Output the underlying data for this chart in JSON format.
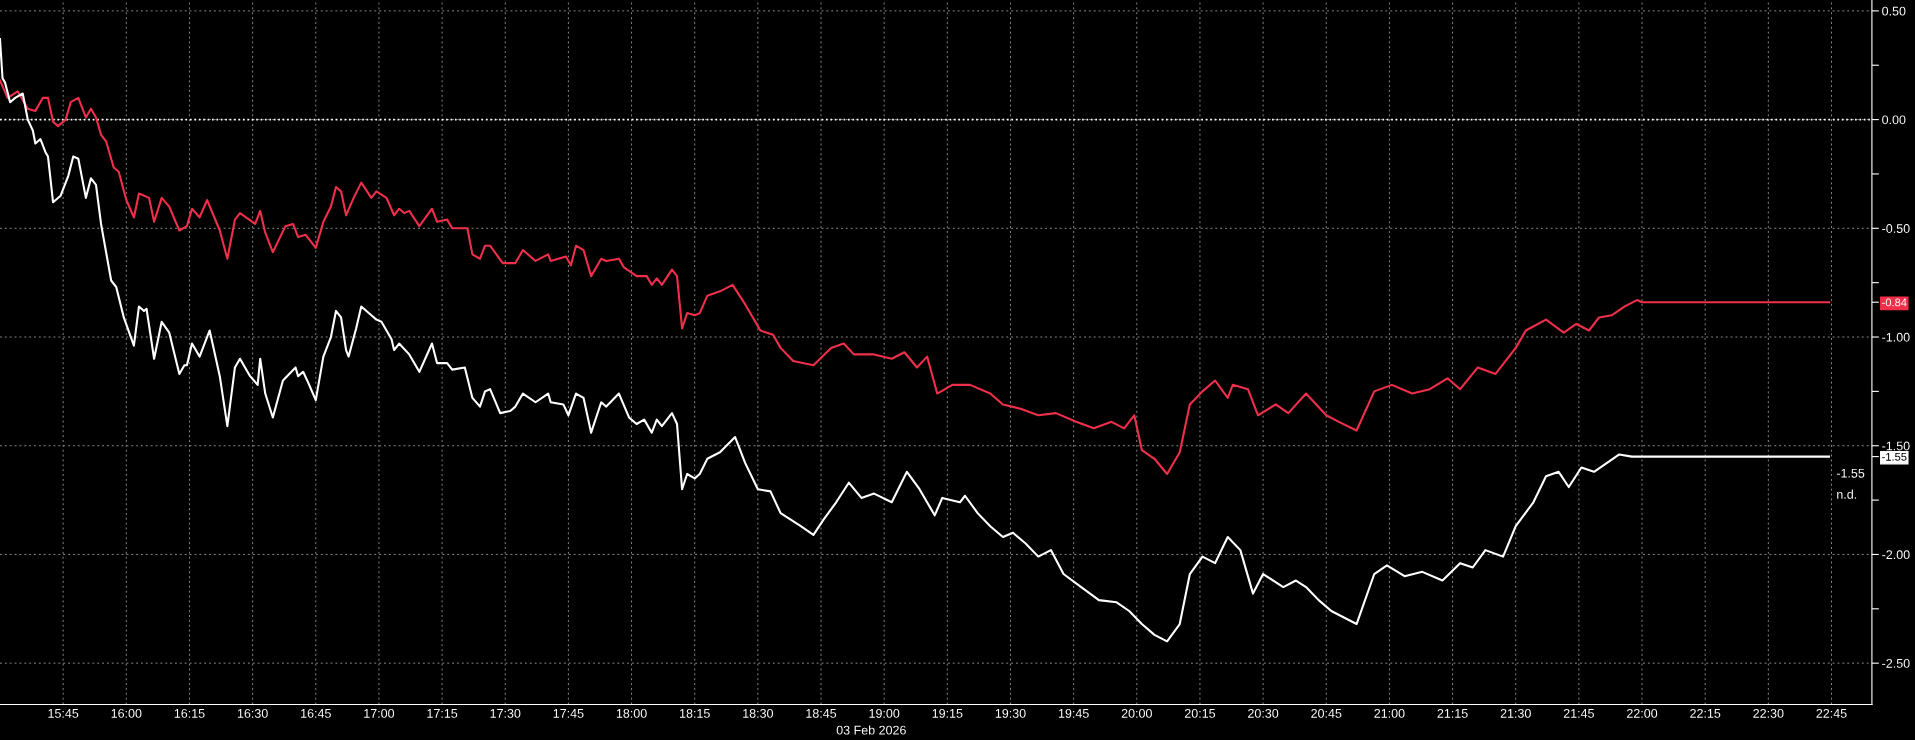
{
  "chart_data": {
    "type": "line",
    "series": [
      {
        "color": "#f0304a",
        "x": [
          15.5,
          15.53,
          15.57,
          15.61,
          15.64,
          15.67,
          15.69,
          15.71,
          15.73,
          15.76,
          15.78,
          15.81,
          15.84,
          15.86,
          15.88,
          15.9,
          15.92,
          15.95,
          15.97,
          16.0,
          16.03,
          16.05,
          16.09,
          16.11,
          16.14,
          16.17,
          16.21,
          16.24,
          16.26,
          16.29,
          16.32,
          16.37,
          16.4,
          16.43,
          16.45,
          16.51,
          16.53,
          16.55,
          16.58,
          16.63,
          16.66,
          16.68,
          16.71,
          16.75,
          16.78,
          16.81,
          16.83,
          16.85,
          16.87,
          16.9,
          16.93,
          16.97,
          16.99,
          17.03,
          17.06,
          17.08,
          17.1,
          17.12,
          17.16,
          17.21,
          17.23,
          17.27,
          17.29,
          17.35,
          17.37,
          17.4,
          17.42,
          17.44,
          17.49,
          17.54,
          17.57,
          17.62,
          17.67,
          17.68,
          17.74,
          17.76,
          17.78,
          17.81,
          17.84,
          17.88,
          17.9,
          17.95,
          17.97,
          18.02,
          18.06,
          18.08,
          18.1,
          18.12,
          18.16,
          18.18,
          18.2,
          18.22,
          18.25,
          18.27,
          18.3,
          18.35,
          18.4,
          18.45,
          18.51,
          18.56,
          18.59,
          18.64,
          18.72,
          18.79,
          18.84,
          18.88,
          18.96,
          19.03,
          19.08,
          19.13,
          19.17,
          19.21,
          19.27,
          19.34,
          19.42,
          19.47,
          19.54,
          19.61,
          19.68,
          19.76,
          19.83,
          19.9,
          19.95,
          19.99,
          20.02,
          20.07,
          20.12,
          20.17,
          20.21,
          20.26,
          20.31,
          20.36,
          20.38,
          20.44,
          20.48,
          20.55,
          20.6,
          20.67,
          20.75,
          20.8,
          20.87,
          20.94,
          21.01,
          21.09,
          21.16,
          21.23,
          21.28,
          21.35,
          21.42,
          21.5,
          21.54,
          21.62,
          21.69,
          21.74,
          21.79,
          21.83,
          21.88,
          21.93,
          21.98,
          22.0,
          22.74
        ],
        "values": [
          0.18,
          0.1,
          0.13,
          0.05,
          0.04,
          0.1,
          0.1,
          -0.01,
          -0.03,
          0.0,
          0.08,
          0.1,
          0.01,
          0.05,
          0.01,
          -0.07,
          -0.1,
          -0.22,
          -0.24,
          -0.37,
          -0.45,
          -0.34,
          -0.36,
          -0.47,
          -0.36,
          -0.4,
          -0.51,
          -0.49,
          -0.41,
          -0.45,
          -0.37,
          -0.51,
          -0.64,
          -0.46,
          -0.43,
          -0.48,
          -0.42,
          -0.52,
          -0.61,
          -0.49,
          -0.48,
          -0.54,
          -0.53,
          -0.59,
          -0.47,
          -0.4,
          -0.31,
          -0.33,
          -0.44,
          -0.36,
          -0.29,
          -0.36,
          -0.33,
          -0.36,
          -0.44,
          -0.41,
          -0.43,
          -0.42,
          -0.49,
          -0.41,
          -0.47,
          -0.46,
          -0.5,
          -0.5,
          -0.62,
          -0.64,
          -0.58,
          -0.58,
          -0.66,
          -0.66,
          -0.6,
          -0.65,
          -0.62,
          -0.65,
          -0.63,
          -0.67,
          -0.58,
          -0.6,
          -0.72,
          -0.64,
          -0.65,
          -0.64,
          -0.68,
          -0.72,
          -0.72,
          -0.76,
          -0.73,
          -0.76,
          -0.69,
          -0.72,
          -0.96,
          -0.89,
          -0.9,
          -0.89,
          -0.81,
          -0.79,
          -0.76,
          -0.85,
          -0.97,
          -0.99,
          -1.05,
          -1.11,
          -1.13,
          -1.05,
          -1.03,
          -1.08,
          -1.08,
          -1.1,
          -1.07,
          -1.14,
          -1.09,
          -1.26,
          -1.22,
          -1.22,
          -1.26,
          -1.31,
          -1.33,
          -1.36,
          -1.35,
          -1.39,
          -1.42,
          -1.39,
          -1.42,
          -1.36,
          -1.52,
          -1.56,
          -1.63,
          -1.53,
          -1.31,
          -1.25,
          -1.2,
          -1.28,
          -1.22,
          -1.24,
          -1.36,
          -1.31,
          -1.35,
          -1.26,
          -1.36,
          -1.39,
          -1.43,
          -1.25,
          -1.22,
          -1.26,
          -1.24,
          -1.19,
          -1.24,
          -1.14,
          -1.17,
          -1.05,
          -0.97,
          -0.92,
          -0.98,
          -0.94,
          -0.97,
          -0.91,
          -0.9,
          -0.86,
          -0.83,
          -0.84,
          -0.84
        ]
      },
      {
        "color": "#ffffff",
        "x": [
          15.5,
          15.51,
          15.52,
          15.54,
          15.56,
          15.59,
          15.61,
          15.63,
          15.64,
          15.66,
          15.68,
          15.69,
          15.71,
          15.74,
          15.77,
          15.79,
          15.81,
          15.84,
          15.86,
          15.88,
          15.9,
          15.94,
          15.96,
          15.99,
          16.03,
          16.05,
          16.07,
          16.08,
          16.11,
          16.14,
          16.17,
          16.21,
          16.23,
          16.24,
          16.26,
          16.29,
          16.33,
          16.37,
          16.4,
          16.43,
          16.45,
          16.49,
          16.52,
          16.53,
          16.55,
          16.58,
          16.62,
          16.67,
          16.68,
          16.7,
          16.72,
          16.75,
          16.78,
          16.81,
          16.83,
          16.85,
          16.87,
          16.88,
          16.91,
          16.93,
          16.97,
          16.99,
          17.01,
          17.05,
          17.06,
          17.08,
          17.12,
          17.16,
          17.21,
          17.23,
          17.27,
          17.29,
          17.34,
          17.37,
          17.4,
          17.42,
          17.44,
          17.48,
          17.52,
          17.54,
          17.57,
          17.62,
          17.67,
          17.68,
          17.73,
          17.75,
          17.78,
          17.81,
          17.84,
          17.88,
          17.9,
          17.95,
          17.99,
          18.02,
          18.05,
          18.08,
          18.1,
          18.12,
          18.16,
          18.18,
          18.2,
          18.22,
          18.25,
          18.27,
          18.3,
          18.35,
          18.41,
          18.45,
          18.5,
          18.55,
          18.59,
          18.67,
          18.72,
          18.76,
          18.81,
          18.86,
          18.91,
          18.96,
          19.03,
          19.09,
          19.14,
          19.2,
          19.23,
          19.3,
          19.32,
          19.37,
          19.42,
          19.47,
          19.51,
          19.56,
          19.61,
          19.66,
          19.71,
          19.78,
          19.85,
          19.92,
          19.97,
          20.02,
          20.07,
          20.12,
          20.17,
          20.21,
          20.26,
          20.31,
          20.36,
          20.41,
          20.46,
          20.5,
          20.58,
          20.63,
          20.67,
          20.72,
          20.77,
          20.82,
          20.87,
          20.94,
          20.99,
          21.06,
          21.13,
          21.21,
          21.28,
          21.33,
          21.38,
          21.45,
          21.5,
          21.57,
          21.62,
          21.67,
          21.71,
          21.76,
          21.81,
          21.86,
          21.91,
          21.96,
          22.0,
          22.74
        ],
        "values": [
          0.37,
          0.19,
          0.17,
          0.08,
          0.1,
          0.12,
          0.0,
          -0.05,
          -0.11,
          -0.09,
          -0.15,
          -0.17,
          -0.38,
          -0.35,
          -0.26,
          -0.17,
          -0.18,
          -0.36,
          -0.27,
          -0.3,
          -0.48,
          -0.74,
          -0.77,
          -0.91,
          -1.04,
          -0.86,
          -0.88,
          -0.87,
          -1.1,
          -0.93,
          -0.98,
          -1.17,
          -1.13,
          -1.13,
          -1.03,
          -1.09,
          -0.97,
          -1.18,
          -1.41,
          -1.14,
          -1.1,
          -1.18,
          -1.22,
          -1.1,
          -1.26,
          -1.37,
          -1.2,
          -1.14,
          -1.18,
          -1.16,
          -1.21,
          -1.29,
          -1.09,
          -1.0,
          -0.88,
          -0.91,
          -1.06,
          -1.09,
          -0.96,
          -0.86,
          -0.9,
          -0.92,
          -0.93,
          -1.01,
          -1.06,
          -1.03,
          -1.08,
          -1.16,
          -1.03,
          -1.12,
          -1.12,
          -1.15,
          -1.14,
          -1.28,
          -1.32,
          -1.25,
          -1.24,
          -1.35,
          -1.34,
          -1.32,
          -1.26,
          -1.3,
          -1.26,
          -1.3,
          -1.31,
          -1.36,
          -1.26,
          -1.28,
          -1.44,
          -1.3,
          -1.32,
          -1.26,
          -1.37,
          -1.4,
          -1.38,
          -1.44,
          -1.38,
          -1.41,
          -1.35,
          -1.4,
          -1.7,
          -1.63,
          -1.65,
          -1.63,
          -1.56,
          -1.53,
          -1.46,
          -1.58,
          -1.7,
          -1.71,
          -1.81,
          -1.87,
          -1.91,
          -1.84,
          -1.76,
          -1.67,
          -1.74,
          -1.72,
          -1.76,
          -1.62,
          -1.7,
          -1.82,
          -1.74,
          -1.76,
          -1.73,
          -1.81,
          -1.87,
          -1.92,
          -1.9,
          -1.95,
          -2.01,
          -1.98,
          -2.09,
          -2.15,
          -2.21,
          -2.22,
          -2.26,
          -2.32,
          -2.37,
          -2.4,
          -2.32,
          -2.09,
          -2.01,
          -2.04,
          -1.92,
          -1.98,
          -2.18,
          -2.09,
          -2.15,
          -2.12,
          -2.15,
          -2.21,
          -2.26,
          -2.29,
          -2.32,
          -2.09,
          -2.05,
          -2.1,
          -2.08,
          -2.12,
          -2.04,
          -2.06,
          -1.98,
          -2.01,
          -1.87,
          -1.76,
          -1.64,
          -1.62,
          -1.69,
          -1.6,
          -1.62,
          -1.58,
          -1.54,
          -1.55,
          -1.55,
          -1.55
        ]
      }
    ],
    "xlim": [
      15.5,
      22.91
    ],
    "xticks": [
      {
        "value": 15.75,
        "label": "15:45"
      },
      {
        "value": 16.0,
        "label": "16:00"
      },
      {
        "value": 16.25,
        "label": "16:15"
      },
      {
        "value": 16.5,
        "label": "16:30"
      },
      {
        "value": 16.75,
        "label": "16:45"
      },
      {
        "value": 17.0,
        "label": "17:00"
      },
      {
        "value": 17.25,
        "label": "17:15"
      },
      {
        "value": 17.5,
        "label": "17:30"
      },
      {
        "value": 17.75,
        "label": "17:45"
      },
      {
        "value": 18.0,
        "label": "18:00"
      },
      {
        "value": 18.25,
        "label": "18:15"
      },
      {
        "value": 18.5,
        "label": "18:30"
      },
      {
        "value": 18.75,
        "label": "18:45"
      },
      {
        "value": 19.0,
        "label": "19:00"
      },
      {
        "value": 19.25,
        "label": "19:15"
      },
      {
        "value": 19.5,
        "label": "19:30"
      },
      {
        "value": 19.75,
        "label": "19:45"
      },
      {
        "value": 20.0,
        "label": "20:00"
      },
      {
        "value": 20.25,
        "label": "20:15"
      },
      {
        "value": 20.5,
        "label": "20:30"
      },
      {
        "value": 20.75,
        "label": "20:45"
      },
      {
        "value": 21.0,
        "label": "21:00"
      },
      {
        "value": 21.25,
        "label": "21:15"
      },
      {
        "value": 21.5,
        "label": "21:30"
      },
      {
        "value": 21.75,
        "label": "21:45"
      },
      {
        "value": 22.0,
        "label": "22:00"
      },
      {
        "value": 22.25,
        "label": "22:15"
      },
      {
        "value": 22.5,
        "label": "22:30"
      },
      {
        "value": 22.75,
        "label": "22:45"
      }
    ],
    "ylim": [
      -2.69,
      0.55
    ],
    "yticks": [
      {
        "value": 0.5,
        "label": "0.50"
      },
      {
        "value": 0.25,
        "label": null
      },
      {
        "value": 0,
        "label": "0.00"
      },
      {
        "value": -0.25,
        "label": null
      },
      {
        "value": -0.5,
        "label": "-0.50"
      },
      {
        "value": -0.75,
        "label": null
      },
      {
        "value": -1.0,
        "label": "-1.00"
      },
      {
        "value": -1.25,
        "label": null
      },
      {
        "value": -0.84,
        "label": "-0.84"
      },
      {
        "value": -1.5,
        "label": "-1.50"
      },
      {
        "value": -1.55,
        "label": "-1.55"
      },
      {
        "value": -1.75,
        "label": null
      },
      {
        "value": -2.0,
        "label": "-2.00"
      },
      {
        "value": -2.25,
        "label": null
      },
      {
        "value": -2.5,
        "label": "-2.50"
      }
    ],
    "grid": true,
    "line_style": "solid",
    "ref_lines": [
      {
        "axis": "y",
        "value": 0,
        "color": "#ffffff",
        "line_style": "dotted"
      }
    ],
    "annotations": [
      "-1.55",
      "n.d.",
      "03 Feb 2026"
    ]
  }
}
